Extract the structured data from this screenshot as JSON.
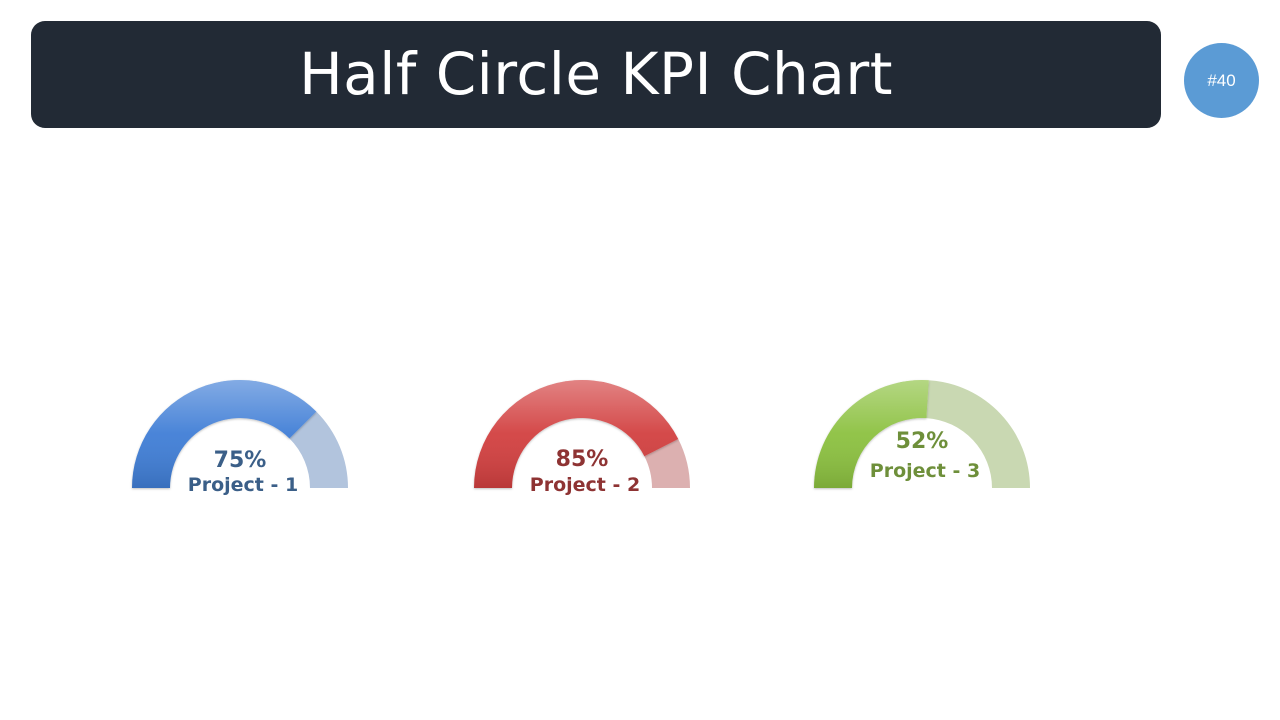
{
  "header": {
    "title": "Half Circle KPI Chart",
    "badge": "#40"
  },
  "chart_data": {
    "type": "gauge",
    "title": "Half Circle KPI Chart",
    "series": [
      {
        "name": "Project - 1",
        "value": 75,
        "value_label": "75%",
        "color": "#3f7ed6",
        "track_color": "#b2c4dd",
        "text_color": "#3b5f88"
      },
      {
        "name": "Project - 2",
        "value": 85,
        "value_label": "85%",
        "color": "#d23f3f",
        "track_color": "#dcb0b0",
        "text_color": "#8e3333"
      },
      {
        "name": "Project - 3",
        "value": 52,
        "value_label": "52%",
        "color": "#8cc13f",
        "track_color": "#c9d8b2",
        "text_color": "#6e8f3a"
      }
    ],
    "range": [
      0,
      100
    ]
  }
}
